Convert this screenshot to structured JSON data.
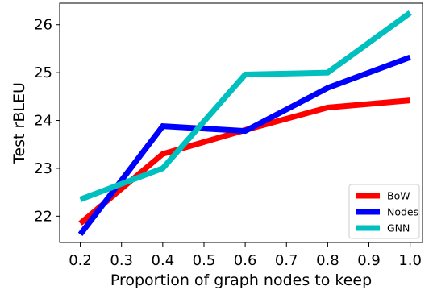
{
  "chart_data": {
    "type": "line",
    "xlabel": "Proportion of graph nodes to keep",
    "ylabel": "Test rBLEU",
    "xlim": [
      0.15,
      1.03
    ],
    "ylim": [
      21.45,
      26.45
    ],
    "xticks": [
      0.2,
      0.3,
      0.4,
      0.5,
      0.6,
      0.7,
      0.8,
      0.9,
      1.0
    ],
    "xtick_labels": [
      "0.2",
      "0.3",
      "0.4",
      "0.5",
      "0.6",
      "0.7",
      "0.8",
      "0.9",
      "1.0"
    ],
    "yticks": [
      22,
      23,
      24,
      25,
      26
    ],
    "ytick_labels": [
      "22",
      "23",
      "24",
      "25",
      "26"
    ],
    "grid": false,
    "legend_position": "lower-right",
    "x": [
      0.2,
      0.4,
      0.6,
      0.8,
      1.0
    ],
    "series": [
      {
        "name": "BoW",
        "color": "#ff0000",
        "values": [
          21.85,
          23.3,
          23.8,
          24.27,
          24.42
        ]
      },
      {
        "name": "Nodes",
        "color": "#0000ff",
        "values": [
          21.62,
          23.88,
          23.78,
          24.68,
          25.32
        ]
      },
      {
        "name": "GNN",
        "color": "#00bfbf",
        "values": [
          22.35,
          23.0,
          24.96,
          25.0,
          26.25
        ]
      }
    ]
  }
}
